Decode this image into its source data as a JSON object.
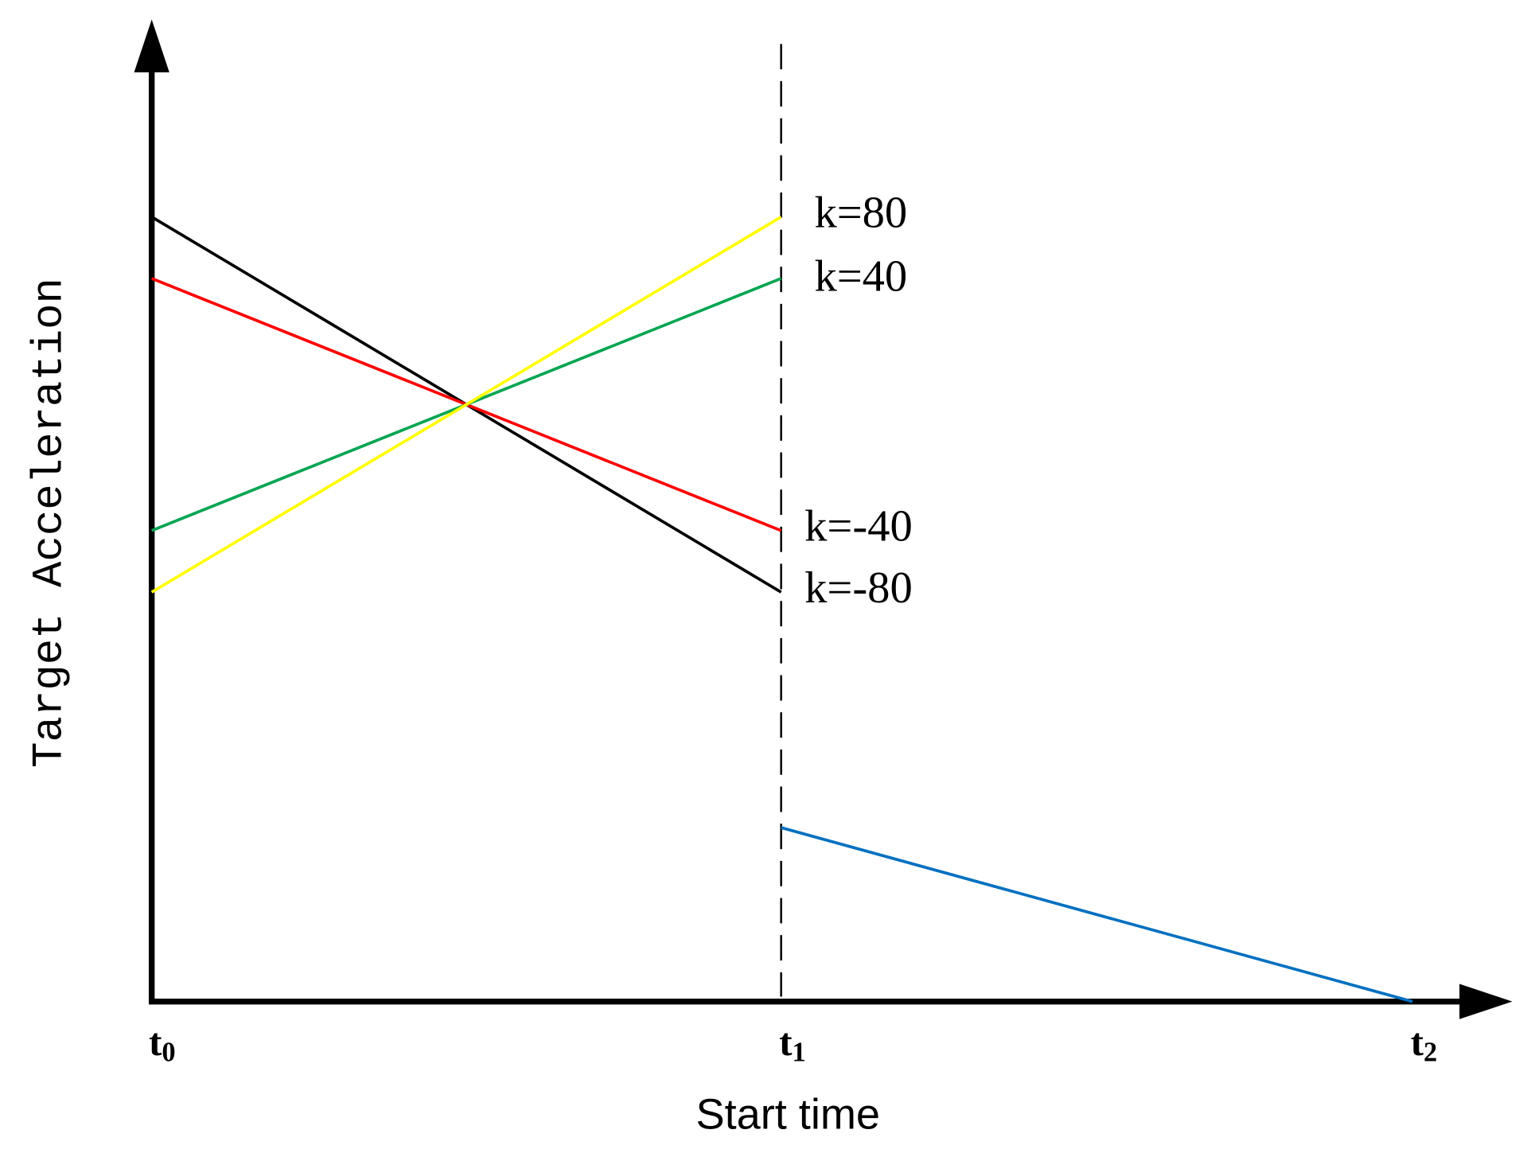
{
  "axes": {
    "y_label": "Target Acceleration",
    "x_label": "Start time",
    "ticks": [
      {
        "letter": "t",
        "subscript": "0"
      },
      {
        "letter": "t",
        "subscript": "1"
      },
      {
        "letter": "t",
        "subscript": "2"
      }
    ]
  },
  "lines": [
    {
      "label": "k=80"
    },
    {
      "label": "k=40"
    },
    {
      "label": "k=-40"
    },
    {
      "label": "k=-80"
    }
  ]
}
